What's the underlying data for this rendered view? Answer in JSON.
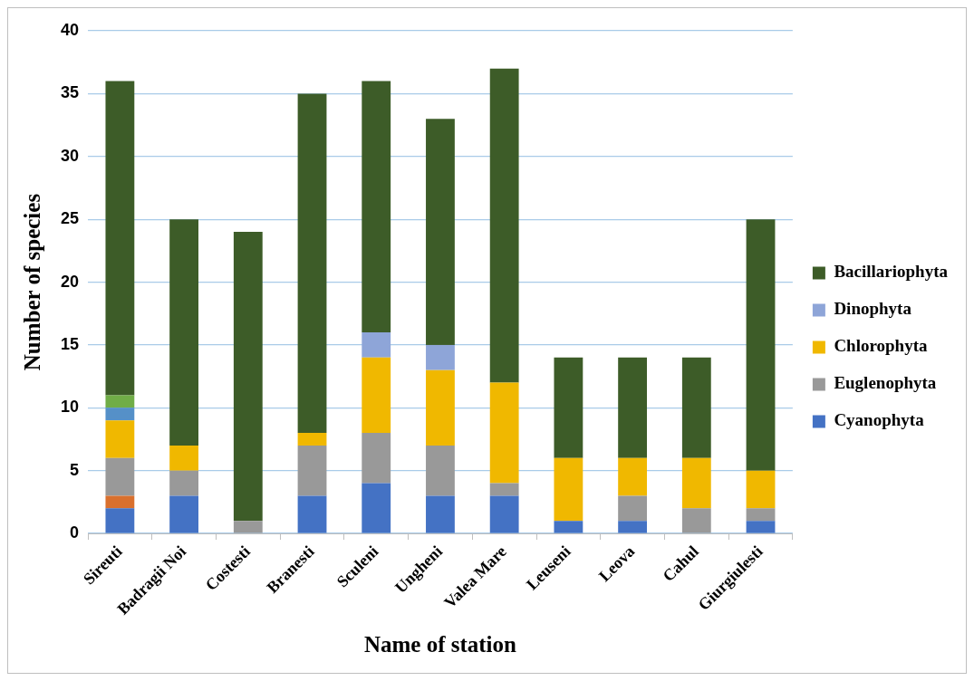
{
  "chart_data": {
    "type": "bar",
    "stacked": true,
    "xlabel": "Name of station",
    "ylabel": "Number of species",
    "categories": [
      "Sireuti",
      "Badragii Noi",
      "Costesti",
      "Branesti",
      "Sculeni",
      "Ungheni",
      "Valea Mare",
      "Leuseni",
      "Leova",
      "Cahul",
      "Giurgiulesti"
    ],
    "series": [
      {
        "name": "Cyanophyta",
        "color": "#4472c4",
        "values": [
          2,
          3,
          0,
          3,
          4,
          3,
          3,
          1,
          1,
          0,
          1
        ]
      },
      {
        "color": "#d9702e",
        "values": [
          1,
          0,
          0,
          0,
          0,
          0,
          0,
          0,
          0,
          0,
          0
        ]
      },
      {
        "name": "Euglenophyta",
        "color": "#999999",
        "values": [
          3,
          2,
          1,
          4,
          4,
          4,
          1,
          0,
          2,
          2,
          1
        ]
      },
      {
        "name": "Chlorophyta",
        "color": "#f0b800",
        "values": [
          3,
          2,
          0,
          1,
          6,
          6,
          8,
          5,
          3,
          4,
          3
        ]
      },
      {
        "color": "#5590c8",
        "values": [
          1,
          0,
          0,
          0,
          0,
          0,
          0,
          0,
          0,
          0,
          0
        ]
      },
      {
        "color": "#70ad47",
        "values": [
          1,
          0,
          0,
          0,
          0,
          0,
          0,
          0,
          0,
          0,
          0
        ]
      },
      {
        "name": "Dinophyta",
        "color": "#8ea5d8",
        "values": [
          0,
          0,
          0,
          0,
          2,
          2,
          0,
          0,
          0,
          0,
          0
        ]
      },
      {
        "name": "Bacillariophyta",
        "color": "#3d5c28",
        "values": [
          25,
          18,
          23,
          27,
          20,
          18,
          25,
          8,
          8,
          8,
          20
        ]
      }
    ],
    "ylim": [
      0,
      40
    ],
    "yticks": [
      0,
      5,
      10,
      15,
      20,
      25,
      30,
      35,
      40
    ],
    "grid": "y",
    "legend": "right"
  }
}
